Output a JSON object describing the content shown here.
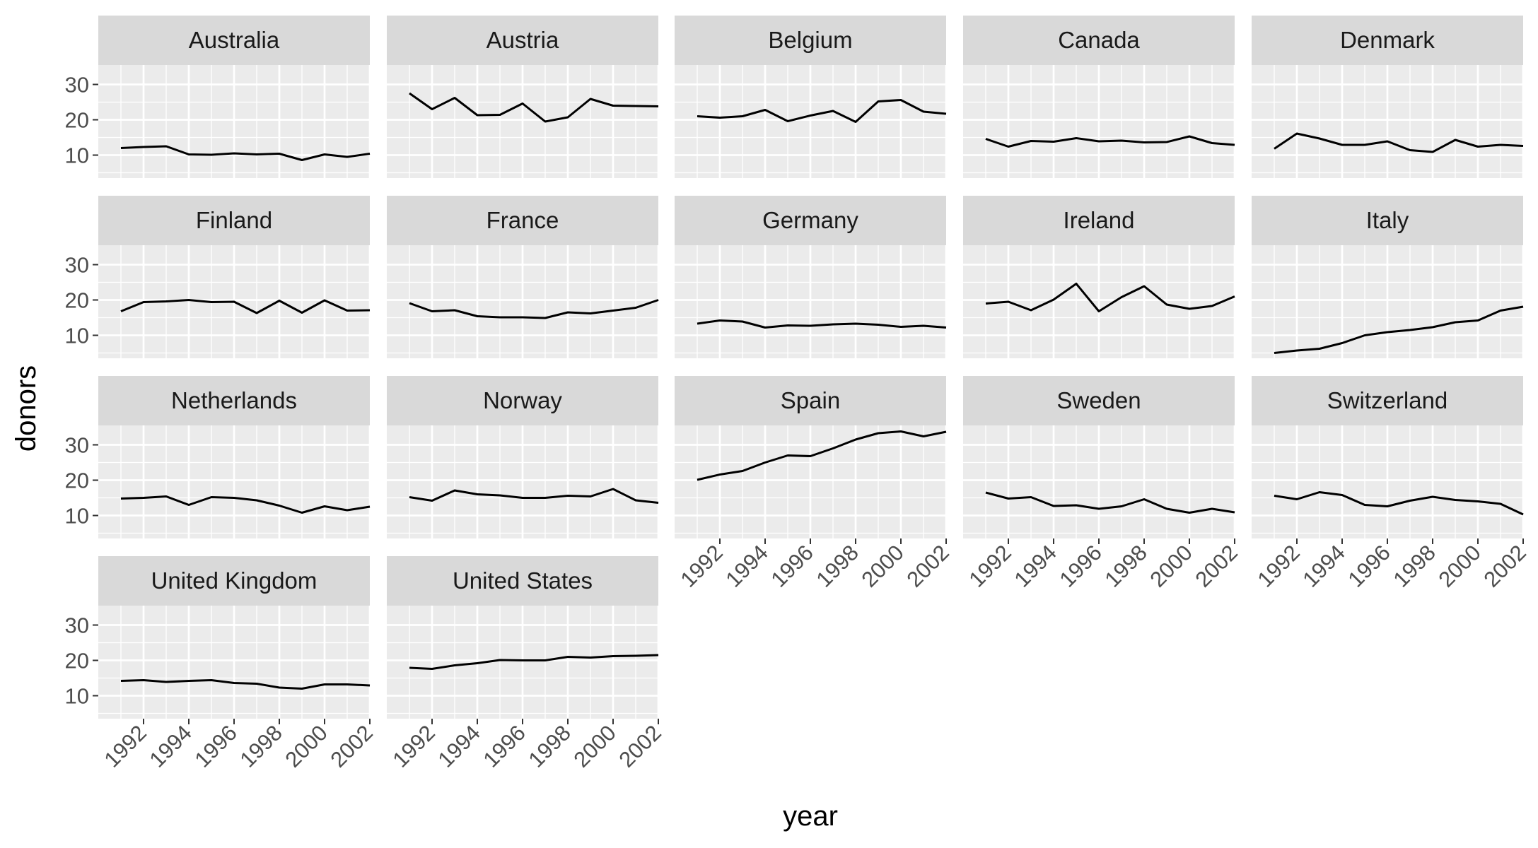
{
  "chart_data": {
    "type": "line",
    "layout": "facet_wrap",
    "ncol": 5,
    "xlabel": "year",
    "ylabel": "donors",
    "xlim": [
      1990,
      2002
    ],
    "ylim": [
      3.5,
      35.5
    ],
    "x_ticks": [
      1992,
      1994,
      1996,
      1998,
      2000,
      2002
    ],
    "y_ticks": [
      10,
      20,
      30
    ],
    "x": [
      1991,
      1992,
      1993,
      1994,
      1995,
      1996,
      1997,
      1998,
      1999,
      2000,
      2001,
      2002
    ],
    "grid": true,
    "line_color": "#000000",
    "panel_bg": "#EBEBEB",
    "strip_bg": "#D9D9D9",
    "series": [
      {
        "name": "Australia",
        "values": [
          12.0,
          12.3,
          12.5,
          10.2,
          10.1,
          10.5,
          10.2,
          10.4,
          8.6,
          10.2,
          9.5,
          10.4
        ]
      },
      {
        "name": "Austria",
        "values": [
          27.5,
          23.0,
          26.2,
          21.3,
          21.4,
          24.6,
          19.5,
          20.7,
          25.9,
          24.0,
          23.9,
          23.8
        ]
      },
      {
        "name": "Belgium",
        "values": [
          21.0,
          20.6,
          21.0,
          22.8,
          19.6,
          21.2,
          22.5,
          19.4,
          25.2,
          25.6,
          22.3,
          21.7
        ]
      },
      {
        "name": "Canada",
        "values": [
          14.6,
          12.4,
          14.0,
          13.8,
          14.8,
          13.9,
          14.1,
          13.6,
          13.7,
          15.3,
          13.4,
          12.9
        ]
      },
      {
        "name": "Denmark",
        "values": [
          11.8,
          16.1,
          14.7,
          12.9,
          12.9,
          13.9,
          11.4,
          10.9,
          14.3,
          12.4,
          12.9,
          12.6
        ]
      },
      {
        "name": "Finland",
        "values": [
          16.8,
          19.4,
          19.6,
          20.0,
          19.4,
          19.5,
          16.3,
          19.8,
          16.4,
          19.9,
          17.0,
          17.1
        ]
      },
      {
        "name": "France",
        "values": [
          19.1,
          16.8,
          17.1,
          15.4,
          15.1,
          15.1,
          14.9,
          16.5,
          16.2,
          17.0,
          17.8,
          20.0
        ]
      },
      {
        "name": "Germany",
        "values": [
          13.3,
          14.2,
          13.9,
          12.2,
          12.8,
          12.7,
          13.1,
          13.3,
          13.0,
          12.4,
          12.7,
          12.2
        ]
      },
      {
        "name": "Ireland",
        "values": [
          19.0,
          19.5,
          17.1,
          20.1,
          24.6,
          16.8,
          20.8,
          23.9,
          18.7,
          17.5,
          18.3,
          21.0
        ]
      },
      {
        "name": "Italy",
        "values": [
          5.0,
          5.7,
          6.2,
          7.8,
          10.0,
          10.9,
          11.5,
          12.3,
          13.7,
          14.2,
          17.0,
          18.1
        ]
      },
      {
        "name": "Netherlands",
        "values": [
          14.8,
          15.0,
          15.4,
          13.0,
          15.2,
          15.0,
          14.3,
          12.8,
          10.8,
          12.6,
          11.5,
          12.5
        ]
      },
      {
        "name": "Norway",
        "values": [
          15.2,
          14.2,
          17.1,
          16.0,
          15.7,
          15.0,
          15.0,
          15.6,
          15.4,
          17.5,
          14.3,
          13.6
        ]
      },
      {
        "name": "Spain",
        "values": [
          20.1,
          21.6,
          22.6,
          25.0,
          27.0,
          26.8,
          29.0,
          31.5,
          33.3,
          33.8,
          32.4,
          33.7
        ]
      },
      {
        "name": "Sweden",
        "values": [
          16.5,
          14.8,
          15.2,
          12.7,
          12.9,
          11.9,
          12.6,
          14.6,
          11.9,
          10.8,
          11.9,
          10.9
        ]
      },
      {
        "name": "Switzerland",
        "values": [
          15.6,
          14.6,
          16.6,
          15.8,
          13.0,
          12.6,
          14.2,
          15.3,
          14.4,
          14.0,
          13.3,
          10.3
        ]
      },
      {
        "name": "United Kingdom",
        "values": [
          14.2,
          14.4,
          13.9,
          14.2,
          14.4,
          13.6,
          13.4,
          12.3,
          12.0,
          13.2,
          13.2,
          12.9
        ]
      },
      {
        "name": "United States",
        "values": [
          17.9,
          17.6,
          18.6,
          19.2,
          20.1,
          20.0,
          20.0,
          21.0,
          20.8,
          21.2,
          21.3,
          21.5
        ]
      }
    ]
  }
}
